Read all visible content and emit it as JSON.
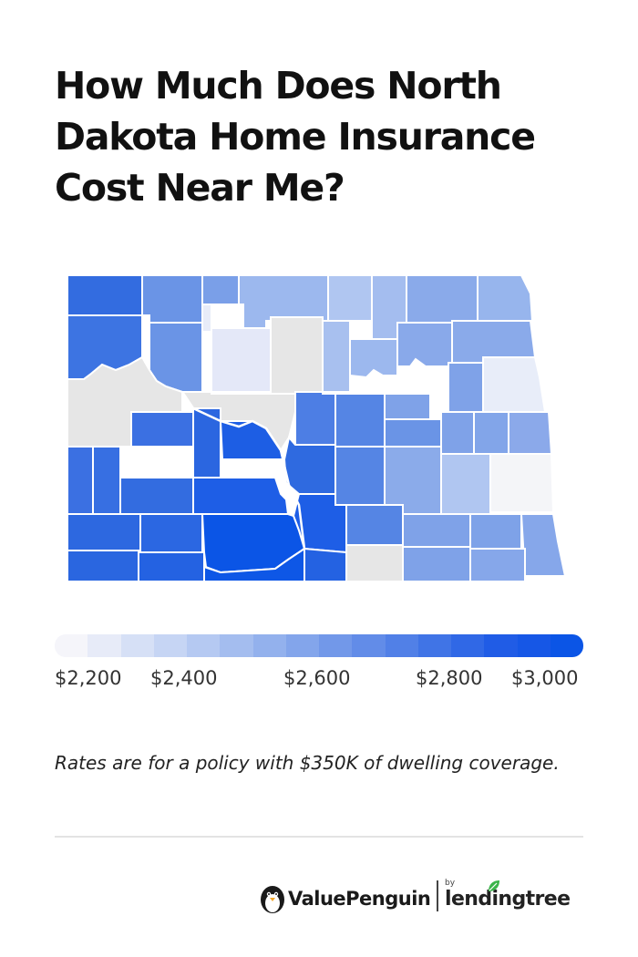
{
  "title": "How Much Does North Dakota Home Insurance Cost Near Me?",
  "legend": {
    "labels": [
      "$2,200",
      "$2,400",
      "$2,600",
      "$2,800",
      "$3,000"
    ],
    "min": 2200,
    "max": 3000,
    "color_low": "#f5f5fa",
    "color_high": "#0b55e6",
    "no_data_color": "#e6e6e6"
  },
  "note": "Rates are for a policy with $350K of dwelling coverage.",
  "brand": {
    "name": "ValuePenguin",
    "by": "by",
    "partner": "lendingtree",
    "accent": "#3bb54a"
  },
  "chart_data": {
    "type": "heatmap",
    "region": "North Dakota counties",
    "value_range": [
      2200,
      3000
    ],
    "approx_levels": [
      2200,
      2250,
      2300,
      2350,
      2400,
      2450,
      2500,
      2550,
      2600,
      2650,
      2700,
      2750,
      2800,
      2850,
      2900,
      2950,
      3000
    ]
  }
}
